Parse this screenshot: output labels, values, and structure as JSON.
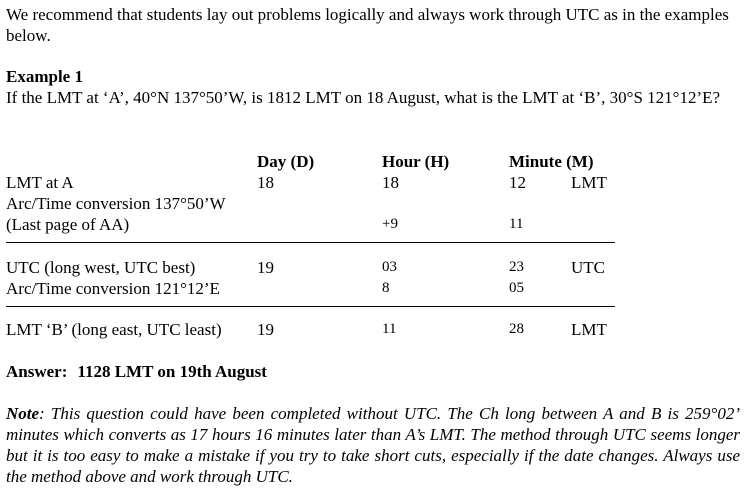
{
  "intro": "We recommend that students lay out problems logically and always work through UTC as in the examples below.",
  "example": {
    "title": "Example 1",
    "question": "If the LMT at ‘A’, 40°N 137°50’W, is 1812 LMT on 18 August, what is the LMT at ‘B’, 30°S 121°12’E?"
  },
  "table": {
    "headers": {
      "day": "Day (D)",
      "hour": "Hour (H)",
      "minute": "Minute (M)"
    },
    "rows": [
      {
        "label": "LMT at A",
        "day": "18",
        "hour": "18",
        "minute": "12",
        "tag": "LMT"
      },
      {
        "label": "Arc/Time conversion 137°50’W",
        "day": "",
        "hour": "",
        "minute": "",
        "tag": ""
      },
      {
        "label": "(Last page of AA)",
        "day": "",
        "hour": "+9",
        "minute": "11",
        "tag": ""
      },
      {
        "label": "UTC (long west, UTC best)",
        "day": "19",
        "hour": "03",
        "minute": "23",
        "tag": "UTC"
      },
      {
        "label": "Arc/Time conversion 121°12’E",
        "day": "",
        "hour": "8",
        "minute": "05",
        "tag": ""
      },
      {
        "label": "LMT ‘B’ (long east, UTC least)",
        "day": "19",
        "hour": "11",
        "minute": "28",
        "tag": "LMT"
      }
    ]
  },
  "answer": {
    "label": "Answer:",
    "value": "1128 LMT on 19th August"
  },
  "note": {
    "label": "Note",
    "text": ": This question could have been completed without UTC. The Ch long between A and B is 259°02’ minutes which converts as 17 hours 16 minutes later than A’s LMT. The method through UTC seems longer but it is too easy to make a mistake if you try to take short cuts, especially if the date changes. Always use the method above and work through UTC."
  }
}
